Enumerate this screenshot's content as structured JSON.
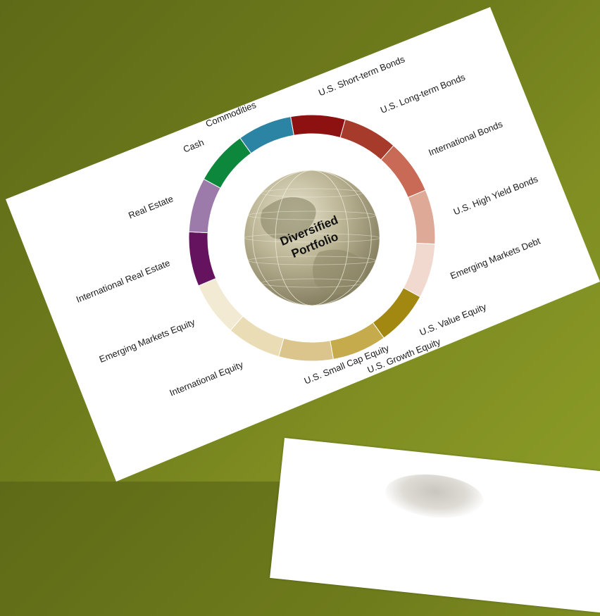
{
  "diagram": {
    "center_text": [
      "Diversified",
      "Portfolio"
    ],
    "segments": [
      {
        "label": "U.S. Short-term Bonds",
        "color": "#8c1110"
      },
      {
        "label": "U.S. Long-term Bonds",
        "color": "#a63b2b"
      },
      {
        "label": "International Bonds",
        "color": "#c86a55"
      },
      {
        "label": "U.S. High Yield Bonds",
        "color": "#deaa97"
      },
      {
        "label": "Emerging Markets Debt",
        "color": "#f1d9cf"
      },
      {
        "label": "U.S. Value Equity",
        "color": "#a28810"
      },
      {
        "label": "U.S. Growth Equity",
        "color": "#c6ab4c"
      },
      {
        "label": "U.S. Small Cap Equity",
        "color": "#dcc58c"
      },
      {
        "label": "International Equity",
        "color": "#eadcb5"
      },
      {
        "label": "Emerging Markets Equity",
        "color": "#f3ead4"
      },
      {
        "label": "International Real Estate",
        "color": "#65125f"
      },
      {
        "label": "Real Estate",
        "color": "#9c7bab"
      },
      {
        "label": "Cash",
        "color": "#0d873c"
      },
      {
        "label": "Commodities",
        "color": "#2c84a4"
      }
    ]
  }
}
